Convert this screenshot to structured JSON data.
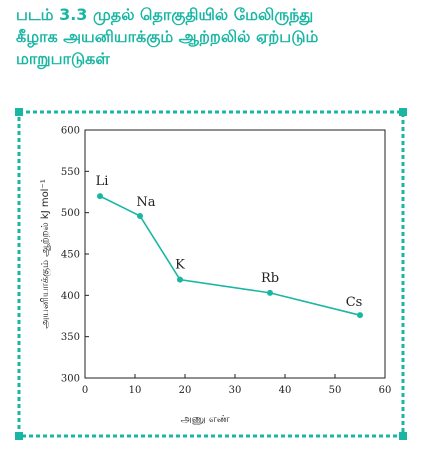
{
  "figure": {
    "caption_lines": [
      "படம் 3.3 முதல் தொகுதியில் மேலிருந்து",
      "கீழாக அயனியாக்கும் ஆற்றலில் ஏற்படும்",
      "மாறுபாடுகள்"
    ]
  },
  "colors": {
    "accent": "#1ab6a4",
    "axis": "#222222"
  },
  "chart_data": {
    "type": "line",
    "xlabel": "அணு எண்",
    "ylabel": "அயனியாக்கும் ஆற்றல் kJ mol⁻¹",
    "xlim": [
      0,
      60
    ],
    "ylim": [
      300,
      600
    ],
    "xticks": [
      0,
      10,
      20,
      30,
      40,
      50,
      60
    ],
    "yticks": [
      300,
      350,
      400,
      450,
      500,
      550,
      600
    ],
    "grid": false,
    "series": [
      {
        "points": [
          {
            "x": 3,
            "y": 520,
            "label": "Li"
          },
          {
            "x": 11,
            "y": 496,
            "label": "Na"
          },
          {
            "x": 19,
            "y": 419,
            "label": "K"
          },
          {
            "x": 37,
            "y": 403,
            "label": "Rb"
          },
          {
            "x": 55,
            "y": 376,
            "label": "Cs"
          }
        ]
      }
    ]
  }
}
